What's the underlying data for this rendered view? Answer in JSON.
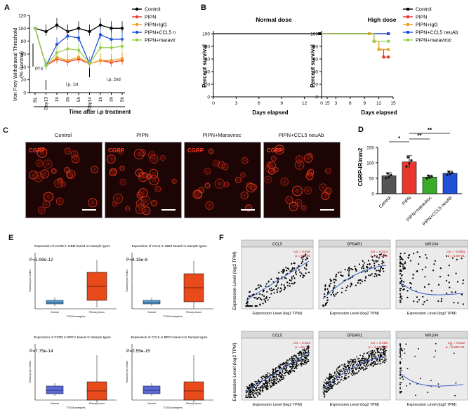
{
  "panels": {
    "a": "A",
    "b": "B",
    "c": "C",
    "d": "D",
    "e": "E",
    "f": "F"
  },
  "A": {
    "ylabel_1": "Von Frey Withdrawal Threshold",
    "ylabel_2": "(% Control)",
    "xlabel": "Time after i.p treatment",
    "ticks_y": [
      "0",
      "20",
      "40",
      "60",
      "80",
      "100",
      "120"
    ],
    "ticks_x": [
      "BL",
      "Day13",
      "1h",
      "3h",
      "5h",
      "Day14",
      "1h",
      "3h",
      "5h"
    ],
    "ann_ptx": "PTX",
    "ann_ip1": "i.p. 1st",
    "ann_ip2": "i.p. 2nd",
    "legend": [
      "Control",
      "PIPN",
      "PIPN+IgG",
      "PIPN+CCL5 neuAb",
      "PIPN+maraviroc"
    ]
  },
  "B": {
    "title_normal": "Normal dose",
    "title_high": "High dose",
    "ylabel": "Percent survival",
    "xlabel": "Days elapsed",
    "ticks_y": [
      "0",
      "20",
      "40",
      "60",
      "80",
      "100"
    ],
    "ticks_x": [
      "0",
      "3",
      "6",
      "9",
      "12",
      "15"
    ],
    "legend": [
      "Control",
      "PIPN",
      "PIPN+IgG",
      "PIPN+CCL5 neuAb",
      "PIPN+maraviroc"
    ]
  },
  "C": {
    "titles": [
      "Control",
      "PIPN",
      "PIPN+Maraviroc",
      "PIPN+CCL5 neuAb"
    ],
    "stain": "CGRP"
  },
  "D": {
    "ylabel": "CGRP-IR/mm2",
    "ticks_y": [
      "0",
      "50",
      "100",
      "150"
    ],
    "categories": [
      "Control",
      "PIPN",
      "PIPN+maraviroc",
      "PIPN+CCL5 neuAb"
    ],
    "sig": [
      "*",
      "**",
      "**"
    ]
  },
  "E": {
    "plots": [
      {
        "title": "Expression of CCR5 in GBM based on Sample types",
        "p": "P=1.99e-12"
      },
      {
        "title": "Expression of CCL5 in GBM based on Sample types",
        "p": "P=4.15e-8"
      },
      {
        "title": "Expression of CCR5 in BRCA based on Sample types",
        "p": "P=7.75e-14"
      },
      {
        "title": "Expression of CCL5 in BRCA based on Sample types",
        "p": "P=2.55e-15"
      }
    ],
    "ylabel": "Transcript per million",
    "xlabel": "TCGA samples",
    "groups": [
      "Normal",
      "Primary tumor"
    ]
  },
  "F": {
    "row_ylabel": "Expression Level (log2 TPM)",
    "col_xlabel": "Expression Level (log2 TPM)",
    "strips": [
      "CCL5",
      "GPBAR1",
      "MR1H4"
    ],
    "cor_top": [
      {
        "cor": "cor = 0.636",
        "p": "p = 0e+00"
      },
      {
        "cor": "cor = 0.513",
        "p": "p = 6.7e-43"
      },
      {
        "cor": "cor = -0.094",
        "p": "p = 5.0e-01"
      }
    ],
    "cor_bottom": [
      {
        "cor": "cor = 0.643",
        "p": "p = 0e+00"
      },
      {
        "cor": "cor = 0.469",
        "p": "p = 2.29e-50"
      },
      {
        "cor": "cor = 0.012",
        "p": "p = 6.89e-01"
      }
    ]
  },
  "colors": {
    "control": "#000000",
    "pipn": "#e8382e",
    "igg": "#f0a020",
    "ccl5": "#2050d8",
    "maraviroc": "#98d04a",
    "box_tumor": "#e84a1c",
    "box_normal": "#5a6ad8"
  },
  "chart_data": [
    {
      "type": "line",
      "ylabel": "Von Frey Withdrawal Threshold (% Control)",
      "xlabel": "Time after i.p treatment",
      "categories": [
        "BL",
        "Day13",
        "1h",
        "3h",
        "5h",
        "Day14",
        "1h",
        "3h",
        "5h"
      ],
      "ylim": [
        0,
        120
      ],
      "series": [
        {
          "name": "Control",
          "values": [
            100,
            95,
            105,
            95,
            100,
            95,
            105,
            100,
            100
          ]
        },
        {
          "name": "PIPN",
          "values": [
            100,
            42,
            52,
            48,
            52,
            45,
            50,
            47,
            50
          ]
        },
        {
          "name": "PIPN+IgG",
          "values": [
            100,
            42,
            55,
            50,
            55,
            45,
            50,
            50,
            53
          ]
        },
        {
          "name": "PIPN+CCL5 neuAb",
          "values": [
            100,
            42,
            75,
            88,
            85,
            45,
            90,
            83,
            83
          ]
        },
        {
          "name": "PIPN+maraviroc",
          "values": [
            100,
            42,
            62,
            68,
            66,
            45,
            70,
            70,
            72
          ]
        }
      ]
    },
    {
      "type": "line",
      "title": "Normal dose",
      "xlabel": "Days elapsed",
      "ylabel": "Percent survival",
      "xlim": [
        0,
        15
      ],
      "ylim": [
        0,
        100
      ],
      "series": [
        {
          "name": "Control",
          "x": [
            0,
            14
          ],
          "y": [
            100,
            100
          ]
        }
      ]
    },
    {
      "type": "line",
      "title": "High dose",
      "xlabel": "Days elapsed",
      "ylabel": "Percent survival",
      "xlim": [
        0,
        15
      ],
      "ylim": [
        0,
        100
      ],
      "series": [
        {
          "name": "Control",
          "x": [
            0,
            14
          ],
          "y": [
            100,
            100
          ]
        },
        {
          "name": "PIPN",
          "x": [
            0,
            10,
            11,
            12,
            13,
            14
          ],
          "y": [
            100,
            100,
            88,
            75,
            63,
            63
          ]
        },
        {
          "name": "PIPN+IgG",
          "x": [
            0,
            10,
            11,
            12,
            14
          ],
          "y": [
            100,
            100,
            88,
            75,
            75
          ]
        },
        {
          "name": "PIPN+CCL5 neuAb",
          "x": [
            0,
            14
          ],
          "y": [
            100,
            100
          ]
        },
        {
          "name": "PIPN+maraviroc",
          "x": [
            0,
            11,
            14
          ],
          "y": [
            100,
            88,
            88
          ]
        }
      ]
    },
    {
      "type": "bar",
      "ylabel": "CGRP-IR/mm2",
      "categories": [
        "Control",
        "PIPN",
        "PIPN+maraviroc",
        "PIPN+CCL5 neuAb"
      ],
      "values": [
        58,
        103,
        54,
        66
      ],
      "errors": [
        10,
        20,
        6,
        7
      ],
      "ylim": [
        0,
        150
      ]
    }
  ]
}
